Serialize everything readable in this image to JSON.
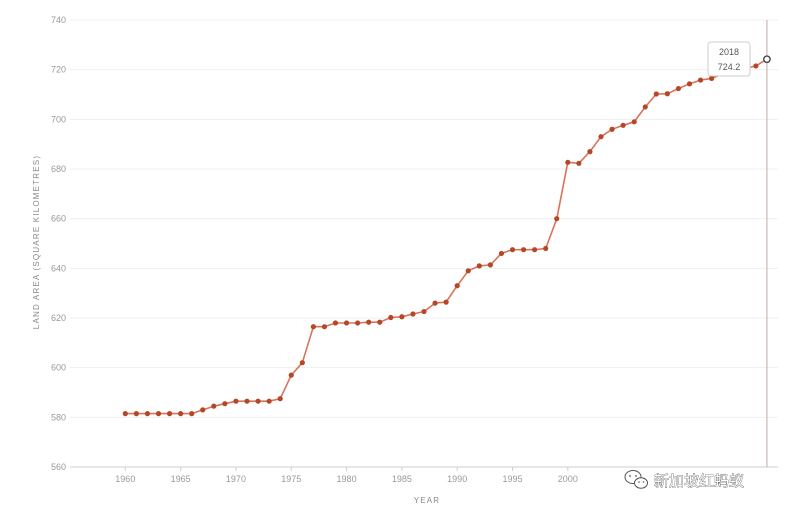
{
  "chart_data": {
    "type": "line",
    "title": "",
    "xlabel": "YEAR",
    "ylabel": "LAND AREA (SQUARE KILOMETRES)",
    "xlim": [
      1955,
      2019
    ],
    "ylim": [
      560,
      740
    ],
    "x_ticks": [
      1960,
      1965,
      1970,
      1975,
      1980,
      1985,
      1990,
      1995,
      2000
    ],
    "y_ticks": [
      560,
      580,
      600,
      620,
      640,
      660,
      680,
      700,
      720,
      740
    ],
    "grid": "horizontal",
    "legend": "none",
    "line_color": "#d9745a",
    "marker_color": "#b5462a",
    "series": [
      {
        "x": [
          1960,
          1961,
          1962,
          1963,
          1964,
          1965,
          1966,
          1967,
          1968,
          1969,
          1970,
          1971,
          1972,
          1973,
          1974,
          1975,
          1976,
          1977,
          1978,
          1979,
          1980,
          1981,
          1982,
          1983,
          1984,
          1985,
          1986,
          1987,
          1988,
          1989,
          1990,
          1991,
          1992,
          1993,
          1994,
          1995,
          1996,
          1997,
          1998,
          1999,
          2000,
          2001,
          2002,
          2003,
          2004,
          2005,
          2006,
          2007,
          2008,
          2009,
          2010,
          2011,
          2012,
          2013,
          2014,
          2017,
          2018
        ],
        "y": [
          581.5,
          581.5,
          581.5,
          581.5,
          581.5,
          581.5,
          581.5,
          583,
          584.5,
          585.5,
          586.5,
          586.5,
          586.5,
          586.5,
          587.5,
          597,
          602,
          616.5,
          616.5,
          618,
          618,
          618,
          618.3,
          618.3,
          620.2,
          620.5,
          621.6,
          622.6,
          626,
          626.4,
          633,
          639,
          641,
          641.4,
          646,
          647.5,
          647.5,
          647.5,
          648,
          660,
          682.7,
          682.3,
          687,
          693,
          696,
          697.6,
          699,
          705,
          710.2,
          710.3,
          712.4,
          714.3,
          715.8,
          716.5,
          718.3,
          721.5,
          724.2
        ]
      }
    ],
    "tooltip": {
      "x_label": "2018",
      "y_label": "724.2"
    }
  },
  "watermark": {
    "text": "新加坡红蚂蚁",
    "icon": "wechat-icon"
  }
}
